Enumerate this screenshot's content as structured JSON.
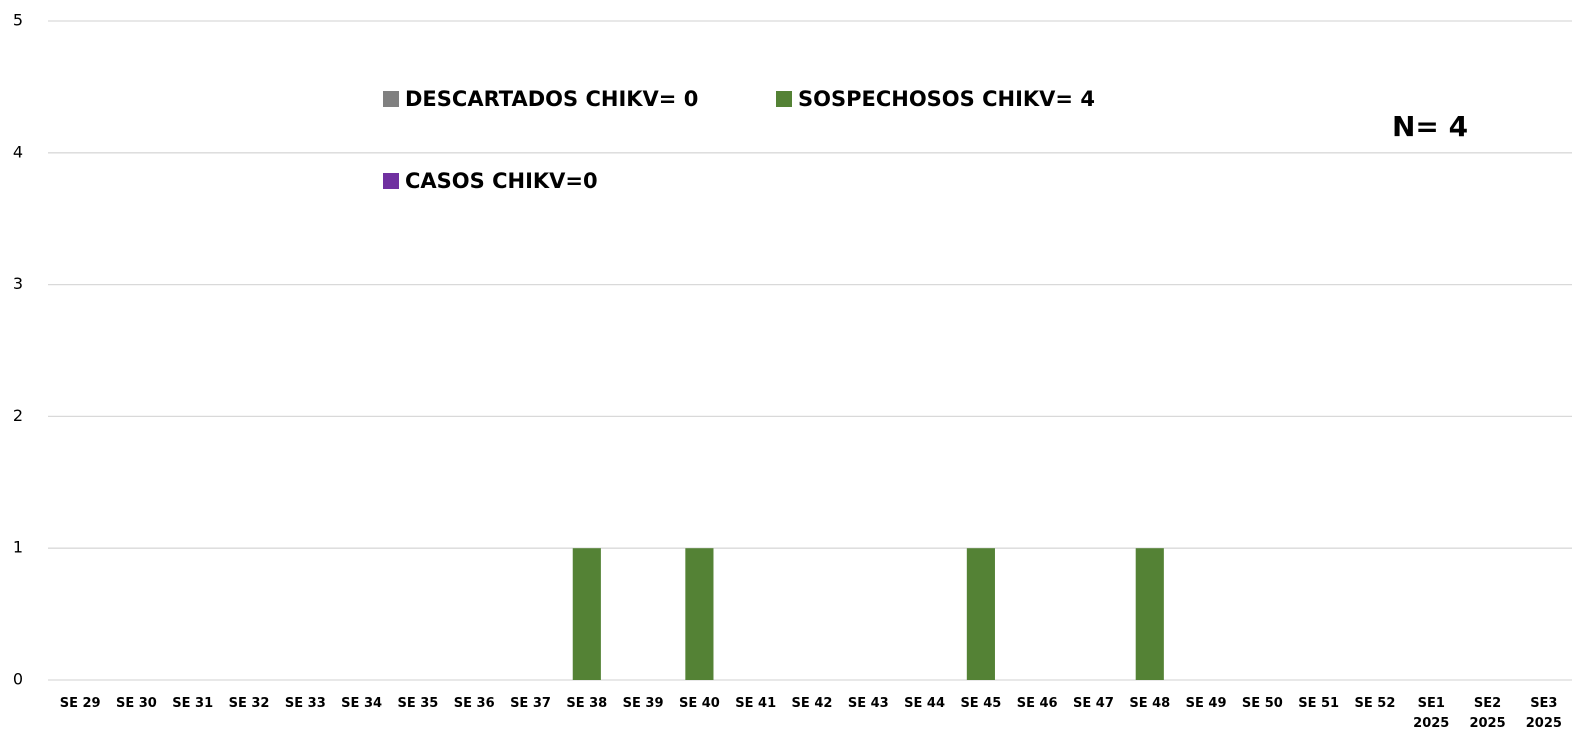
{
  "chart_data": {
    "type": "bar",
    "categories": [
      "SE 29",
      "SE 30",
      "SE 31",
      "SE 32",
      "SE 33",
      "SE 34",
      "SE 35",
      "SE 36",
      "SE 37",
      "SE 38",
      "SE 39",
      "SE 40",
      "SE 41",
      "SE 42",
      "SE 43",
      "SE 44",
      "SE 45",
      "SE 46",
      "SE 47",
      "SE 48",
      "SE 49",
      "SE 50",
      "SE 51",
      "SE 52",
      "SE1 2025",
      "SE2 2025",
      "SE3 2025"
    ],
    "series": [
      {
        "name": "DESCARTADOS CHIKV= 0",
        "color": "#808080",
        "values": [
          0,
          0,
          0,
          0,
          0,
          0,
          0,
          0,
          0,
          0,
          0,
          0,
          0,
          0,
          0,
          0,
          0,
          0,
          0,
          0,
          0,
          0,
          0,
          0,
          0,
          0,
          0
        ]
      },
      {
        "name": "SOSPECHOSOS CHIKV= 4",
        "color": "#548235",
        "values": [
          0,
          0,
          0,
          0,
          0,
          0,
          0,
          0,
          0,
          1,
          0,
          1,
          0,
          0,
          0,
          0,
          1,
          0,
          0,
          1,
          0,
          0,
          0,
          0,
          0,
          0,
          0
        ]
      },
      {
        "name": "CASOS CHIKV=0",
        "color": "#7030a0",
        "values": [
          0,
          0,
          0,
          0,
          0,
          0,
          0,
          0,
          0,
          0,
          0,
          0,
          0,
          0,
          0,
          0,
          0,
          0,
          0,
          0,
          0,
          0,
          0,
          0,
          0,
          0,
          0
        ]
      }
    ],
    "annotation": "N= 4",
    "ylim": [
      0,
      5
    ],
    "yticks": [
      0,
      1,
      2,
      3,
      4,
      5
    ],
    "grid": true
  }
}
